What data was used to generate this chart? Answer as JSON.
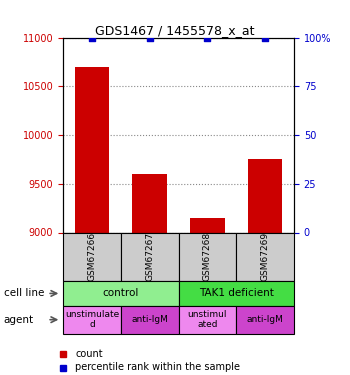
{
  "title": "GDS1467 / 1455578_x_at",
  "samples": [
    "GSM67266",
    "GSM67267",
    "GSM67268",
    "GSM67269"
  ],
  "bar_values": [
    10700,
    9600,
    9150,
    9750
  ],
  "percentile_values": [
    100,
    100,
    100,
    100
  ],
  "ylim_left": [
    9000,
    11000
  ],
  "ylim_right": [
    0,
    100
  ],
  "yticks_left": [
    9000,
    9500,
    10000,
    10500,
    11000
  ],
  "yticks_right": [
    0,
    25,
    50,
    75,
    100
  ],
  "bar_color": "#cc0000",
  "percentile_color": "#0000cc",
  "bar_width": 0.6,
  "cell_line_groups": [
    {
      "label": "control",
      "span": [
        0,
        2
      ],
      "color": "#90ee90"
    },
    {
      "label": "TAK1 deficient",
      "span": [
        2,
        4
      ],
      "color": "#44dd44"
    }
  ],
  "agent_groups": [
    {
      "label": "unstimulate\nd",
      "span": [
        0,
        1
      ],
      "color": "#ee88ee"
    },
    {
      "label": "anti-IgM",
      "span": [
        1,
        2
      ],
      "color": "#cc44cc"
    },
    {
      "label": "unstimul\nated",
      "span": [
        2,
        3
      ],
      "color": "#ee88ee"
    },
    {
      "label": "anti-IgM",
      "span": [
        3,
        4
      ],
      "color": "#cc44cc"
    }
  ],
  "sample_box_color": "#cccccc",
  "left_tick_color": "#cc0000",
  "right_tick_color": "#0000cc",
  "grid_color": "#888888",
  "background_color": "#ffffff"
}
